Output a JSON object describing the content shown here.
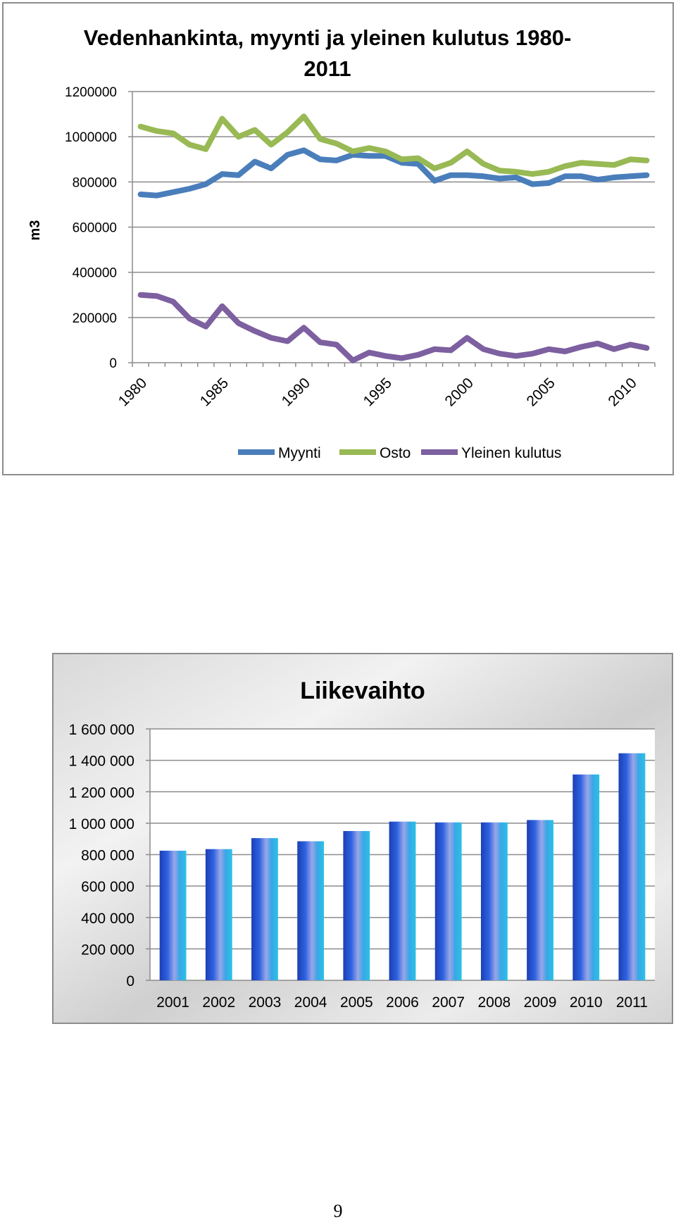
{
  "chart_data": [
    {
      "type": "line",
      "title_lines": [
        "Vedenhankinta, myynti ja yleinen kulutus 1980-",
        "2011"
      ],
      "ylabel": "m3",
      "xlabel": "",
      "ylim": [
        0,
        1200000
      ],
      "yticks": [
        "0",
        "200000",
        "400000",
        "600000",
        "800000",
        "1000000",
        "1200000"
      ],
      "xticks": [
        "1980",
        "1985",
        "1990",
        "1995",
        "2000",
        "2005",
        "2010"
      ],
      "x": [
        1980,
        1981,
        1982,
        1983,
        1984,
        1985,
        1986,
        1987,
        1988,
        1989,
        1990,
        1991,
        1992,
        1993,
        1994,
        1995,
        1996,
        1997,
        1998,
        1999,
        2000,
        2001,
        2002,
        2003,
        2004,
        2005,
        2006,
        2007,
        2008,
        2009,
        2010,
        2011
      ],
      "grid": true,
      "legend_position": "bottom",
      "series": [
        {
          "name": "Myynti",
          "color": "#4a7ebb",
          "values": [
            745000,
            740000,
            755000,
            770000,
            790000,
            835000,
            830000,
            890000,
            860000,
            920000,
            940000,
            900000,
            895000,
            920000,
            915000,
            915000,
            885000,
            880000,
            805000,
            830000,
            830000,
            825000,
            815000,
            820000,
            790000,
            795000,
            825000,
            825000,
            810000,
            820000,
            825000,
            830000
          ]
        },
        {
          "name": "Osto",
          "color": "#98b954",
          "values": [
            1045000,
            1025000,
            1015000,
            965000,
            945000,
            1080000,
            1000000,
            1030000,
            965000,
            1020000,
            1090000,
            990000,
            970000,
            935000,
            950000,
            935000,
            900000,
            905000,
            860000,
            885000,
            935000,
            880000,
            850000,
            845000,
            835000,
            845000,
            870000,
            885000,
            880000,
            875000,
            900000,
            895000
          ]
        },
        {
          "name": "Yleinen kulutus",
          "color": "#7d60a0",
          "values": [
            300000,
            295000,
            270000,
            195000,
            160000,
            250000,
            175000,
            140000,
            110000,
            95000,
            155000,
            90000,
            80000,
            10000,
            45000,
            30000,
            20000,
            35000,
            60000,
            55000,
            110000,
            60000,
            40000,
            30000,
            40000,
            60000,
            50000,
            70000,
            85000,
            60000,
            80000,
            65000
          ]
        }
      ]
    },
    {
      "type": "bar",
      "title": "Liikevaihto",
      "xlabel": "",
      "ylabel": "",
      "ylim": [
        0,
        1600000
      ],
      "yticks": [
        "0",
        "200 000",
        "400 000",
        "600 000",
        "800 000",
        "1 000 000",
        "1 200 000",
        "1 400 000",
        "1 600 000"
      ],
      "categories": [
        "2001",
        "2002",
        "2003",
        "2004",
        "2005",
        "2006",
        "2007",
        "2008",
        "2009",
        "2010",
        "2011"
      ],
      "values": [
        825000,
        835000,
        905000,
        885000,
        950000,
        1010000,
        1005000,
        1005000,
        1020000,
        1310000,
        1445000
      ],
      "grid": true,
      "legend_position": "none"
    }
  ],
  "page_number": "9"
}
